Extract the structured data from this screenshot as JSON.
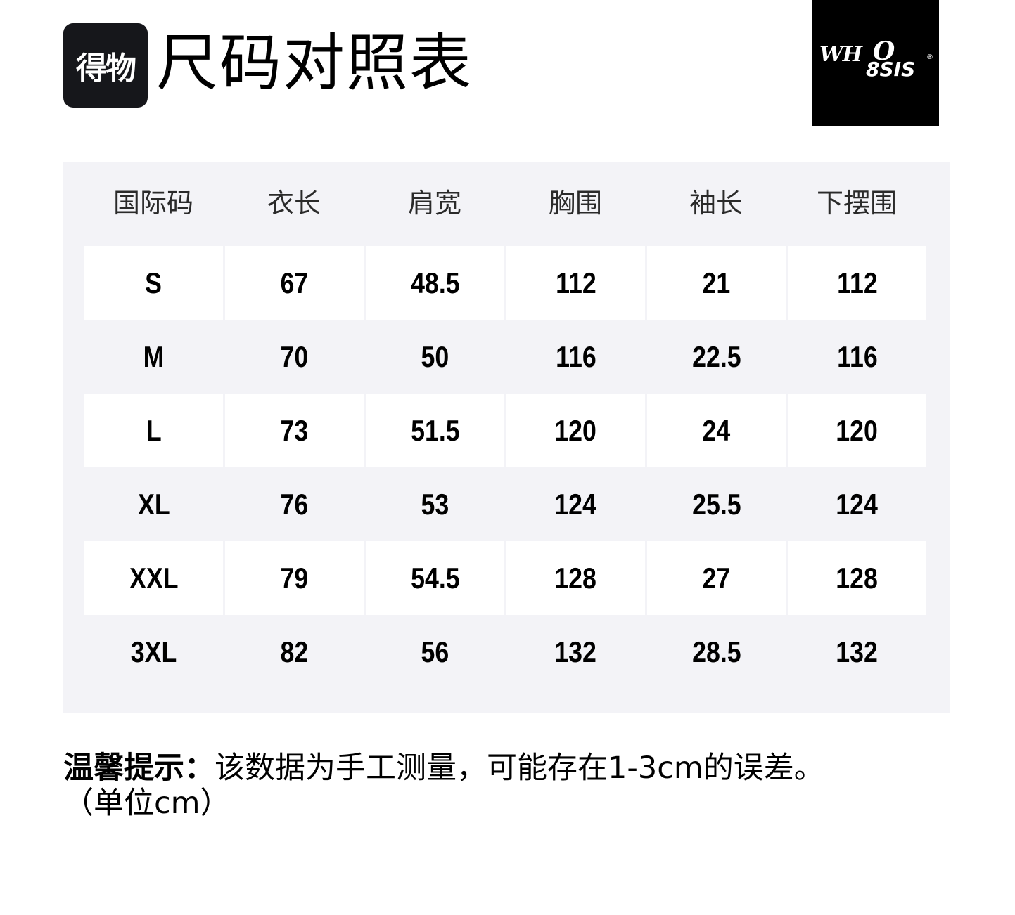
{
  "header": {
    "app_logo_text": "得物",
    "title": "尺码对照表",
    "brand_logo_text": "WHO8SIS®"
  },
  "table": {
    "columns": [
      "国际码",
      "衣长",
      "肩宽",
      "胸围",
      "袖长",
      "下摆围"
    ],
    "rows": [
      [
        "S",
        "67",
        "48.5",
        "112",
        "21",
        "112"
      ],
      [
        "M",
        "70",
        "50",
        "116",
        "22.5",
        "116"
      ],
      [
        "L",
        "73",
        "51.5",
        "120",
        "24",
        "120"
      ],
      [
        "XL",
        "76",
        "53",
        "124",
        "25.5",
        "124"
      ],
      [
        "XXL",
        "79",
        "54.5",
        "128",
        "27",
        "128"
      ],
      [
        "3XL",
        "82",
        "56",
        "132",
        "28.5",
        "132"
      ]
    ]
  },
  "note": {
    "label": "温馨提示：",
    "text": "该数据为手工测量，可能存在1-3cm的误差。",
    "unit": "（单位cm）"
  },
  "colors": {
    "panel_bg": "#f3f3f7",
    "cell_bg": "#ffffff",
    "logo_bg": "#16171b"
  }
}
